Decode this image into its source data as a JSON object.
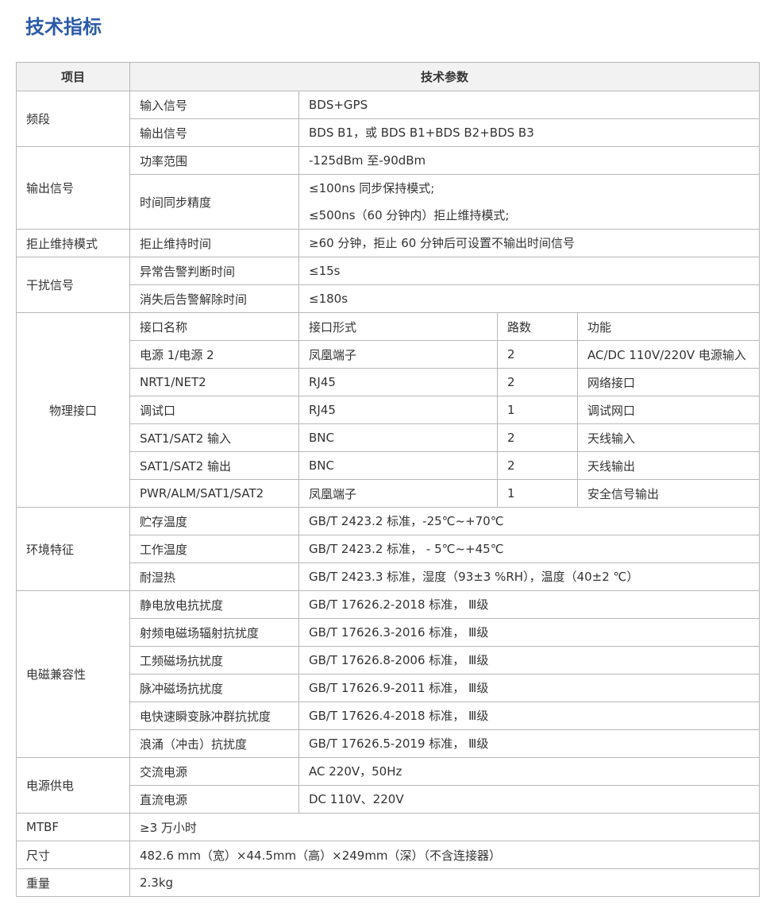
{
  "title": "技术指标",
  "header": {
    "item": "项目",
    "params": "技术参数"
  },
  "sections": [
    {
      "label": "频段",
      "rows": [
        {
          "name": "输入信号",
          "value": [
            "BDS+GPS"
          ]
        },
        {
          "name": "输出信号",
          "value": [
            "BDS B1，或 BDS B1+BDS B2+BDS B3"
          ]
        }
      ]
    },
    {
      "label": "输出信号",
      "rows": [
        {
          "name": "功率范围",
          "value": [
            "-125dBm 至-90dBm"
          ]
        },
        {
          "name": "时间同步精度",
          "value": [
            "≤100ns 同步保持模式;",
            "≤500ns（60 分钟内）拒止维持模式;"
          ]
        }
      ]
    },
    {
      "label": "拒止维持模式",
      "rows": [
        {
          "name": "拒止维持时间",
          "value": [
            "≥60 分钟，拒止 60 分钟后可设置不输出时间信号"
          ]
        }
      ]
    },
    {
      "label": "干扰信号",
      "rows": [
        {
          "name": "异常告警判断时间",
          "value": [
            "≤15s"
          ]
        },
        {
          "name": "消失后告警解除时间",
          "value": [
            "≤180s"
          ]
        }
      ]
    }
  ],
  "interfaces": {
    "label": "物理接口",
    "columns": [
      "接口名称",
      "接口形式",
      "路数",
      "功能"
    ],
    "rows": [
      [
        "电源 1/电源 2",
        "凤凰端子",
        "2",
        "AC/DC 110V/220V 电源输入"
      ],
      [
        "NRT1/NET2",
        "RJ45",
        "2",
        "网络接口"
      ],
      [
        "调试口",
        "RJ45",
        "1",
        "调试网口"
      ],
      [
        "SAT1/SAT2 输入",
        "BNC",
        "2",
        "天线输入"
      ],
      [
        "SAT1/SAT2 输出",
        "BNC",
        "2",
        "天线输出"
      ],
      [
        "PWR/ALM/SAT1/SAT2",
        "凤凰端子",
        "1",
        "安全信号输出"
      ]
    ]
  },
  "sections2": [
    {
      "label": "环境特征",
      "rows": [
        {
          "name": "贮存温度",
          "value": [
            "GB/T 2423.2 标准，-25℃~+70℃"
          ]
        },
        {
          "name": "工作温度",
          "value": [
            "GB/T 2423.2 标准， - 5℃~+45℃"
          ]
        },
        {
          "name": "耐湿热",
          "value": [
            "GB/T 2423.3 标准，湿度（93±3 %RH），温度（40±2 ℃）"
          ]
        }
      ]
    },
    {
      "label": "电磁兼容性",
      "rows": [
        {
          "name": "静电放电抗扰度",
          "value": [
            "GB/T 17626.2-2018 标准，  Ⅲ级"
          ]
        },
        {
          "name": "射频电磁场辐射抗扰度",
          "value": [
            "GB/T 17626.3-2016 标准，  Ⅲ级"
          ]
        },
        {
          "name": "工频磁场抗扰度",
          "value": [
            "GB/T 17626.8-2006 标准，  Ⅲ级"
          ]
        },
        {
          "name": "脉冲磁场抗扰度",
          "value": [
            "GB/T 17626.9-2011 标准，  Ⅲ级"
          ]
        },
        {
          "name": "电快速瞬变脉冲群抗扰度",
          "value": [
            "GB/T 17626.4-2018 标准，  Ⅲ级"
          ]
        },
        {
          "name": "浪涌（冲击）抗扰度",
          "value": [
            "GB/T 17626.5-2019 标准，  Ⅲ级"
          ]
        }
      ]
    },
    {
      "label": "电源供电",
      "rows": [
        {
          "name": "交流电源",
          "value": [
            "AC 220V，50Hz"
          ]
        },
        {
          "name": "直流电源",
          "value": [
            "DC 110V、220V"
          ]
        }
      ]
    }
  ],
  "singles": [
    {
      "label": "MTBF",
      "value": "≥3 万小时"
    },
    {
      "label": "尺寸",
      "value": "482.6 mm（宽）×44.5mm（高）×249mm（深）（不含连接器）"
    },
    {
      "label": "重量",
      "value": "2.3kg"
    }
  ]
}
